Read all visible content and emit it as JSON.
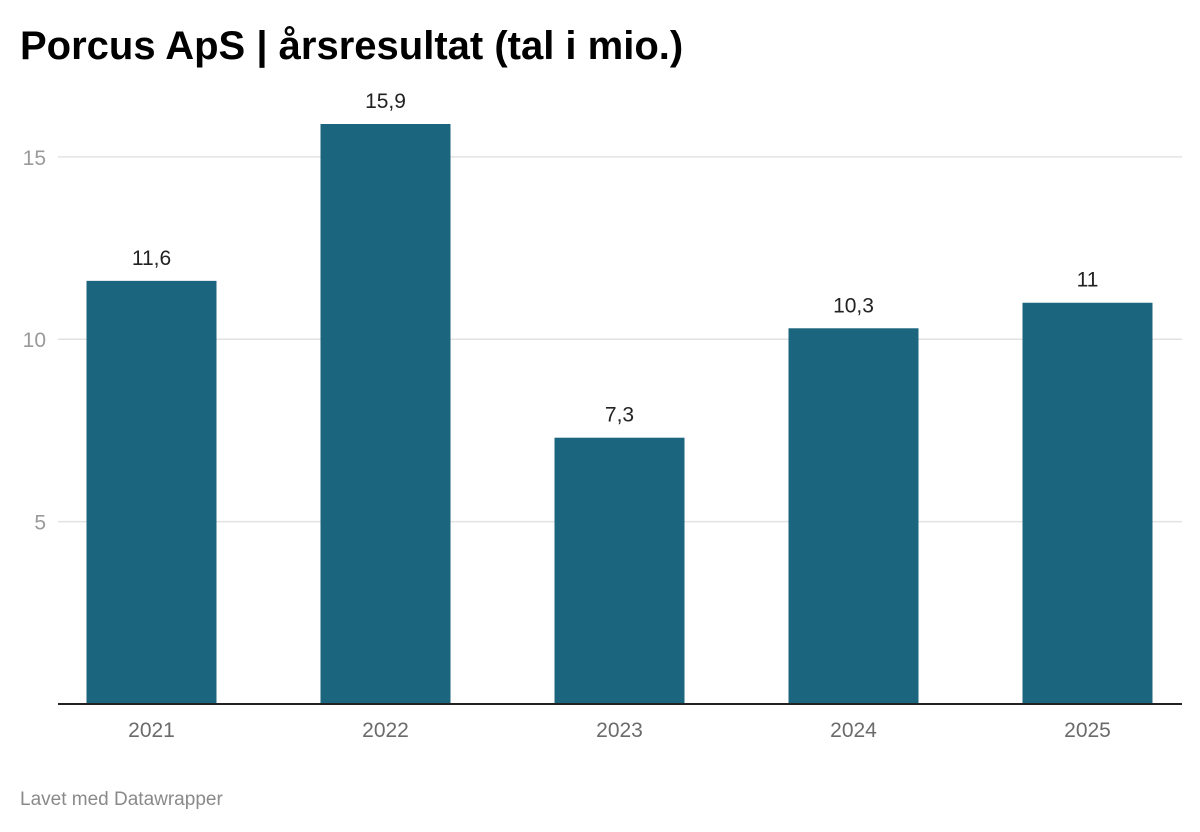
{
  "title": "Porcus ApS | årsresultat (tal i mio.)",
  "footer": "Lavet med Datawrapper",
  "colors": {
    "bar": "#1b667e",
    "grid": "#e2e2e2",
    "baseline": "#222222"
  },
  "chart_data": {
    "type": "bar",
    "title": "Porcus ApS | årsresultat (tal i mio.)",
    "xlabel": "",
    "ylabel": "",
    "categories": [
      "2021",
      "2022",
      "2023",
      "2024",
      "2025"
    ],
    "values": [
      11.6,
      15.9,
      7.3,
      10.3,
      11
    ],
    "value_labels": [
      "11,6",
      "15,9",
      "7,3",
      "10,3",
      "11"
    ],
    "y_ticks": [
      5,
      10,
      15
    ],
    "ylim": [
      0,
      15.9
    ],
    "grid": true,
    "legend": "none"
  }
}
